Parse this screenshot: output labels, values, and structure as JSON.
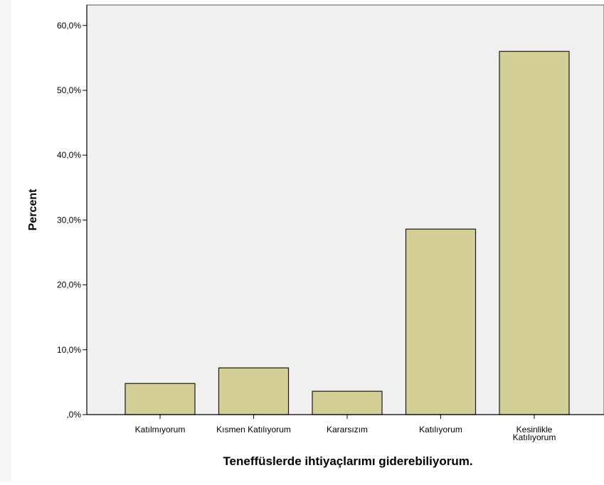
{
  "chart_data": {
    "type": "bar",
    "title": "",
    "xlabel": "Teneffüslerde ihtiyaçlarımı giderebiliyorum.",
    "ylabel": "Percent",
    "categories": [
      [
        "Katılmıyorum"
      ],
      [
        "Kısmen Katılıyorum"
      ],
      [
        "Kararsızım"
      ],
      [
        "Katılıyorum"
      ],
      [
        "Kesinlikle",
        "Katılıyorum"
      ]
    ],
    "values": [
      4.8,
      7.2,
      3.6,
      28.6,
      56.0
    ],
    "ylim": [
      0,
      62
    ],
    "yticks": [
      0,
      10,
      20,
      30,
      40,
      50,
      60
    ],
    "ytick_labels": [
      ",0%",
      "10,0%",
      "20,0%",
      "30,0%",
      "40,0%",
      "50,0%",
      "60,0%"
    ],
    "grid": false,
    "colors": {
      "bar_fill": "#d4cf97",
      "bar_stroke": "#1a1a1a",
      "plot_background": "#f0f0f0",
      "axis": "#000000"
    }
  }
}
